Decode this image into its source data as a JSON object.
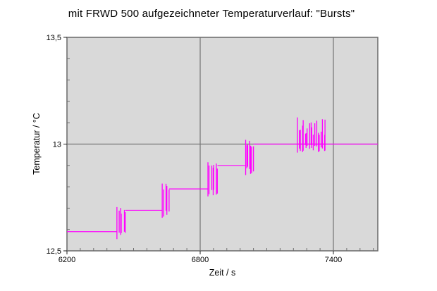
{
  "chart_data": {
    "type": "line",
    "title": "mit FRWD 500 aufgezeichneter Temperaturverlauf: \"Bursts\"",
    "xlabel": "Zeit / s",
    "ylabel": "Temperatur / °C",
    "xlim": [
      6200,
      7600
    ],
    "ylim": [
      12.5,
      13.5
    ],
    "xticks": [
      6200,
      6800,
      7400
    ],
    "xtick_labels": [
      "6200",
      "6800",
      "7400"
    ],
    "yticks": [
      12.5,
      13.0,
      13.5
    ],
    "ytick_labels": [
      "12,5",
      "13",
      "13,5"
    ],
    "x_minor_step": 60,
    "y_minor_step": 0.1,
    "grid_on": true,
    "legend": "none",
    "colors": {
      "series": "#FF00FF",
      "plot_background": "#D9D9D9",
      "page_background": "#FFFFFF",
      "gridline": "#757575",
      "plot_border": "#696969",
      "major_tick": "#222222",
      "minor_tick": "#6e6e6e",
      "text": "#000000"
    },
    "series_name": "Temperatur",
    "steps": [
      {
        "t_start": 6200,
        "t_end": 6425,
        "temp": 12.59
      },
      {
        "t_start": 6463,
        "t_end": 6629,
        "temp": 12.69
      },
      {
        "t_start": 6660,
        "t_end": 6835,
        "temp": 12.79
      },
      {
        "t_start": 6878,
        "t_end": 7002,
        "temp": 12.9
      },
      {
        "t_start": 7040,
        "t_end": 7600,
        "temp": 13.0
      }
    ],
    "bursts": [
      {
        "t_start": 6425,
        "t_end": 6463,
        "temp_min": 12.555,
        "temp_max": 12.705,
        "spikes": 6
      },
      {
        "t_start": 6629,
        "t_end": 6660,
        "temp_min": 12.655,
        "temp_max": 12.815,
        "spikes": 5
      },
      {
        "t_start": 6835,
        "t_end": 6878,
        "temp_min": 12.755,
        "temp_max": 12.915,
        "spikes": 7
      },
      {
        "t_start": 7002,
        "t_end": 7040,
        "temp_min": 12.855,
        "temp_max": 13.02,
        "spikes": 7
      },
      {
        "t_start": 7238,
        "t_end": 7365,
        "temp_min": 12.96,
        "temp_max": 13.125,
        "spikes": 20,
        "baseline": 13.0
      }
    ]
  }
}
